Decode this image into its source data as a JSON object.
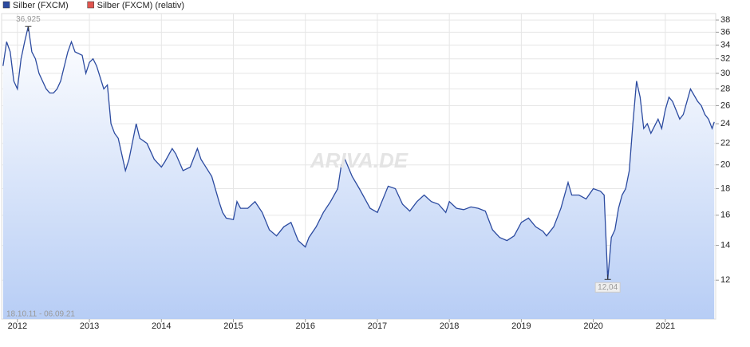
{
  "chart_data": {
    "type": "line",
    "legend": "top-left",
    "grid": true,
    "yscale": "log",
    "date_range": "18.10.11 - 06.09.21",
    "watermark": "ARIVA.DE",
    "xlim": [
      2011.78,
      2021.7
    ],
    "xticks": [
      2012,
      2013,
      2014,
      2015,
      2016,
      2017,
      2018,
      2019,
      2020,
      2021
    ],
    "ylim": [
      10.1,
      39.1
    ],
    "yticks": [
      12,
      14,
      16,
      18,
      20,
      22,
      24,
      26,
      28,
      30,
      32,
      34,
      36,
      38
    ],
    "x": [
      2011.8,
      2011.85,
      2011.9,
      2011.95,
      2012.0,
      2012.05,
      2012.1,
      2012.15,
      2012.2,
      2012.25,
      2012.3,
      2012.4,
      2012.45,
      2012.5,
      2012.55,
      2012.6,
      2012.7,
      2012.75,
      2012.8,
      2012.9,
      2012.95,
      2013.0,
      2013.05,
      2013.1,
      2013.2,
      2013.25,
      2013.3,
      2013.35,
      2013.4,
      2013.5,
      2013.55,
      2013.65,
      2013.7,
      2013.8,
      2013.9,
      2014.0,
      2014.05,
      2014.15,
      2014.2,
      2014.3,
      2014.4,
      2014.5,
      2014.55,
      2014.7,
      2014.8,
      2014.85,
      2014.9,
      2015.0,
      2015.05,
      2015.1,
      2015.2,
      2015.3,
      2015.4,
      2015.5,
      2015.6,
      2015.7,
      2015.8,
      2015.9,
      2016.0,
      2016.05,
      2016.15,
      2016.25,
      2016.35,
      2016.45,
      2016.5,
      2016.55,
      2016.65,
      2016.75,
      2016.9,
      2017.0,
      2017.1,
      2017.15,
      2017.25,
      2017.35,
      2017.45,
      2017.55,
      2017.65,
      2017.75,
      2017.85,
      2017.95,
      2018.0,
      2018.1,
      2018.2,
      2018.3,
      2018.4,
      2018.5,
      2018.6,
      2018.7,
      2018.8,
      2018.9,
      2019.0,
      2019.1,
      2019.2,
      2019.3,
      2019.35,
      2019.45,
      2019.55,
      2019.65,
      2019.7,
      2019.8,
      2019.9,
      2020.0,
      2020.1,
      2020.15,
      2020.2,
      2020.25,
      2020.3,
      2020.35,
      2020.4,
      2020.45,
      2020.5,
      2020.55,
      2020.6,
      2020.65,
      2020.7,
      2020.75,
      2020.8,
      2020.9,
      2020.95,
      2021.0,
      2021.05,
      2021.1,
      2021.2,
      2021.25,
      2021.35,
      2021.45,
      2021.5,
      2021.55,
      2021.6,
      2021.65,
      2021.68
    ],
    "series": [
      {
        "name": "Silber (FXCM)",
        "color": "#2c4ba0",
        "values": [
          31,
          34.5,
          33,
          29,
          28,
          32,
          34.5,
          36.925,
          33,
          32,
          30,
          28,
          27.5,
          27.5,
          28,
          29,
          33,
          34.5,
          33,
          32.5,
          30,
          31.5,
          32,
          31,
          28,
          28.5,
          24,
          23,
          22.5,
          19.5,
          20.5,
          24,
          22.5,
          22,
          20.5,
          19.8,
          20.3,
          21.5,
          21,
          19.5,
          19.8,
          21.5,
          20.5,
          19,
          17,
          16.2,
          15.8,
          15.7,
          17,
          16.5,
          16.5,
          17,
          16.2,
          15,
          14.6,
          15.2,
          15.5,
          14.3,
          13.9,
          14.5,
          15.2,
          16.2,
          17,
          18,
          20,
          20.5,
          19,
          18,
          16.5,
          16.2,
          17.5,
          18.2,
          18,
          16.8,
          16.3,
          17,
          17.5,
          17,
          16.8,
          16.2,
          17,
          16.5,
          16.4,
          16.6,
          16.5,
          16.3,
          15,
          14.5,
          14.3,
          14.6,
          15.5,
          15.8,
          15.2,
          14.9,
          14.6,
          15.2,
          16.5,
          18.5,
          17.5,
          17.5,
          17.2,
          18,
          17.8,
          17.5,
          12.04,
          14.5,
          15,
          16.5,
          17.5,
          18,
          19.5,
          24,
          29,
          27,
          23.5,
          24,
          23,
          24.5,
          23.5,
          25.5,
          27,
          26.5,
          24.5,
          25,
          28,
          26.5,
          26,
          25,
          24.5,
          23.5,
          24.2
        ]
      },
      {
        "name": "Silber (FXCM) (relativ)",
        "color": "#e0554f"
      }
    ],
    "annotations": [
      {
        "x": 2012.15,
        "value": 36.925,
        "label": "36,925"
      },
      {
        "x": 2020.2,
        "value": 12.04,
        "label": "12,04"
      }
    ]
  }
}
